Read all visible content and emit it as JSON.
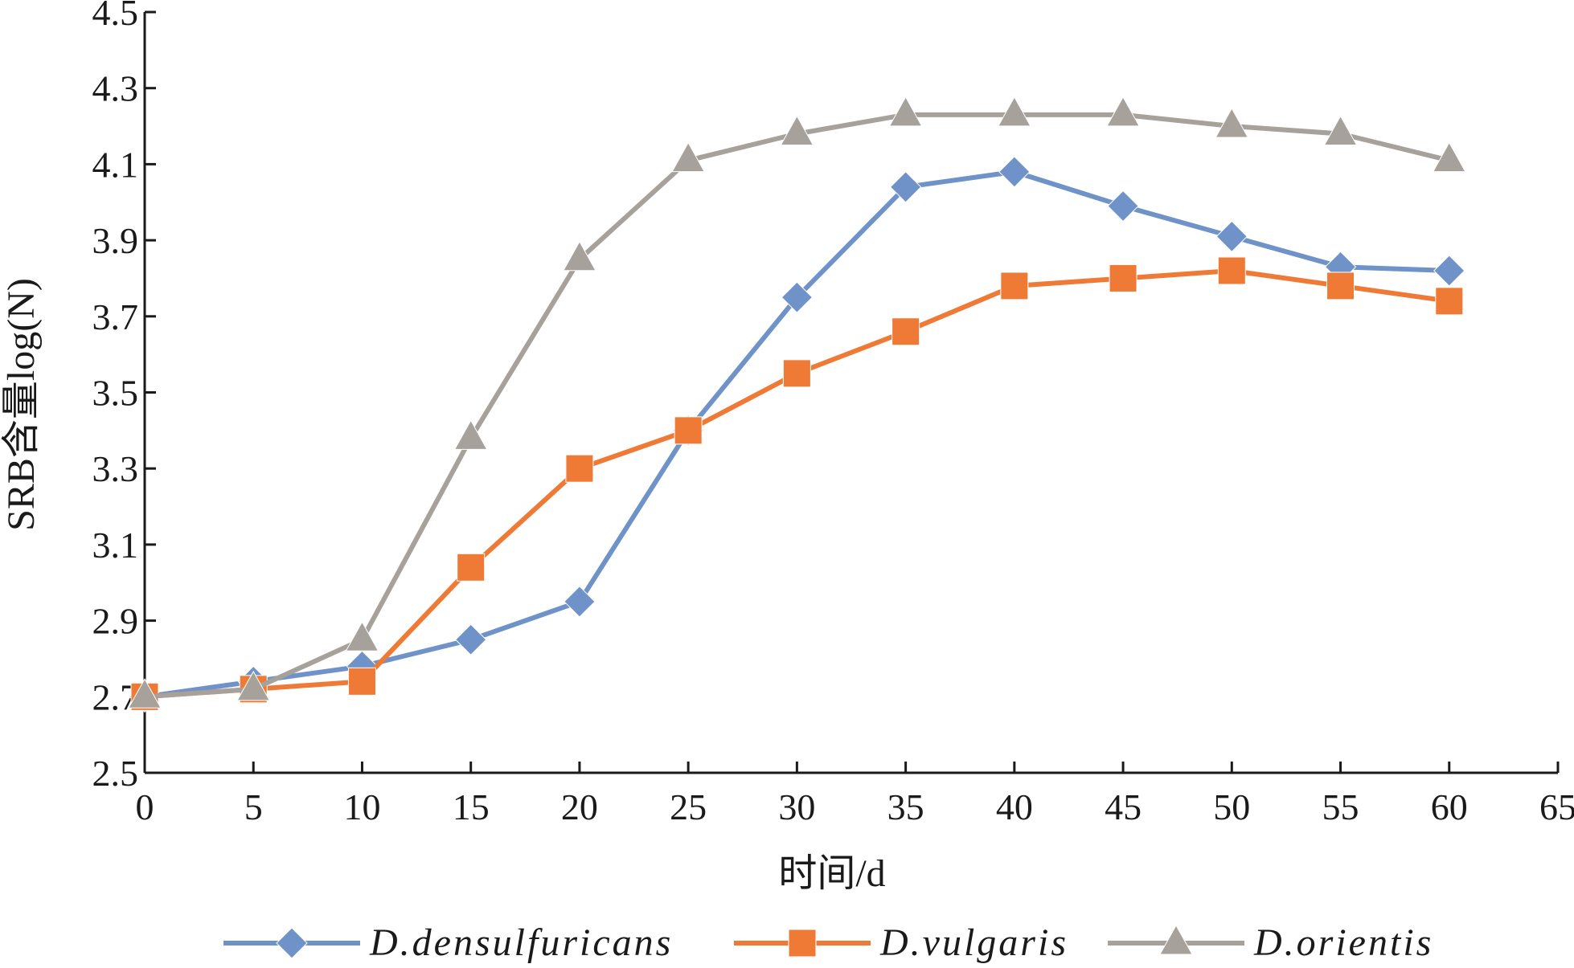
{
  "chart_data": {
    "type": "line",
    "xlabel": "时间/d",
    "ylabel": "SRB含量log(N)",
    "xlim": [
      0,
      65
    ],
    "ylim": [
      2.5,
      4.5
    ],
    "x_ticks": [
      "0",
      "5",
      "10",
      "15",
      "20",
      "25",
      "30",
      "35",
      "40",
      "45",
      "50",
      "55",
      "60",
      "65"
    ],
    "y_ticks": [
      "2.5",
      "2.7",
      "2.9",
      "3.1",
      "3.3",
      "3.5",
      "3.7",
      "3.9",
      "4.1",
      "4.3",
      "4.5"
    ],
    "grid": false,
    "legend_position": "bottom",
    "x": [
      0,
      5,
      10,
      15,
      20,
      25,
      30,
      35,
      40,
      45,
      50,
      55,
      60
    ],
    "series": [
      {
        "name": "D.densulfuricans",
        "color": "#6f93c9",
        "marker": "diamond",
        "values": [
          2.7,
          2.74,
          2.78,
          2.85,
          2.95,
          3.4,
          3.75,
          4.04,
          4.08,
          3.99,
          3.91,
          3.83,
          3.82
        ]
      },
      {
        "name": "D.vulgaris",
        "color": "#ef7a36",
        "marker": "square",
        "values": [
          2.7,
          2.72,
          2.74,
          3.04,
          3.3,
          3.4,
          3.55,
          3.66,
          3.78,
          3.8,
          3.82,
          3.78,
          3.74
        ]
      },
      {
        "name": "D.orientis",
        "color": "#a7a19c",
        "marker": "triangle",
        "values": [
          2.7,
          2.72,
          2.85,
          3.38,
          3.85,
          4.11,
          4.18,
          4.23,
          4.23,
          4.23,
          4.2,
          4.18,
          4.11
        ]
      }
    ]
  }
}
